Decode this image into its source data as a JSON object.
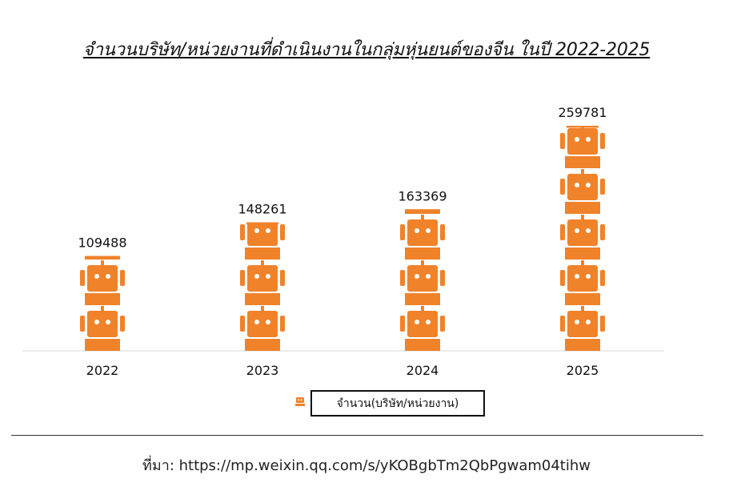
{
  "title": "จำนวนบริษัท/หน่วยงานที่ดำเนินงานในกลุ่มหุ่นยนต์ของจีน  ในปี 2022-2025",
  "source": "ที่มา: https://mp.weixin.qq.com/s/yKOBgbTm2QbPgwam04tihw",
  "colors": {
    "robot": "#f0822a",
    "axis": "#e6e6e6",
    "text": "#111111"
  },
  "chart_data": {
    "type": "bar",
    "style": "pictograph",
    "icon": "robot-icon",
    "categories": [
      "2022",
      "2023",
      "2024",
      "2025"
    ],
    "series": [
      {
        "name": "จำนวน(บริษัท/หน่วยงาน)",
        "values": [
          109488,
          148261,
          163369,
          259781
        ]
      }
    ],
    "ylim": [
      0,
      259781
    ],
    "legend": "bottom",
    "grid": false
  }
}
